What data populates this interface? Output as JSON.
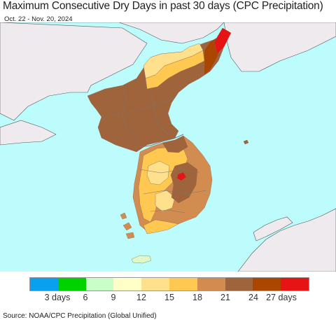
{
  "header": {
    "title": "Maximum Consecutive Dry Days in past 30 days (CPC Precipitation)",
    "date_range": "Oct. 22 - Nov. 20, 2024"
  },
  "legend": {
    "colors": [
      "#0aa0f0",
      "#00d200",
      "#c8ffc8",
      "#ffffc8",
      "#ffe08c",
      "#ffc850",
      "#d28c50",
      "#a0643c",
      "#aa4600",
      "#e61414"
    ],
    "ticks": [
      "3 days",
      "6",
      "9",
      "12",
      "15",
      "18",
      "21",
      "24",
      "27 days"
    ]
  },
  "map": {
    "colors": {
      "ocean": "#bdfcfc",
      "land_outside": "#eeeaee",
      "dry_21_24": "#a0643c",
      "dry_18_21": "#d28c50",
      "dry_15_18": "#ffc850",
      "dry_12_15": "#ffe08c",
      "dry_27_plus": "#e61414",
      "dry_24_27": "#aa4600",
      "border": "#777777"
    }
  },
  "footer": {
    "source": "Source: NOAA/CPC Precipitation (Global Unified)"
  }
}
